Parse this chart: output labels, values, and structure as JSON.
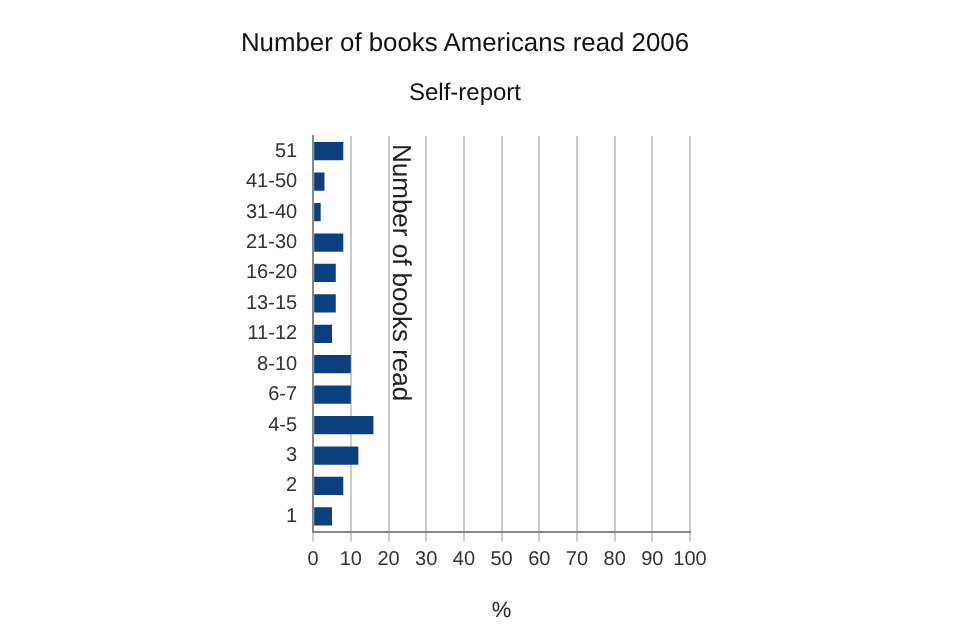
{
  "chart_data": {
    "type": "bar",
    "orientation": "horizontal",
    "title": "Number of books Americans read 2006",
    "subtitle": "Self-report",
    "xlabel": "%",
    "ylabel": "Number of books read",
    "categories": [
      "51",
      "41-50",
      "31-40",
      "21-30",
      "16-20",
      "13-15",
      "11-12",
      "8-10",
      "6-7",
      "4-5",
      "3",
      "2",
      "1"
    ],
    "values": [
      8,
      3,
      2,
      8,
      6,
      6,
      5,
      10,
      10,
      16,
      12,
      8,
      5
    ],
    "color": "#0b4080",
    "xlim": [
      0,
      100
    ],
    "xticks": [
      0,
      10,
      20,
      30,
      40,
      50,
      60,
      70,
      80,
      90,
      100
    ],
    "grid": "x",
    "legend": false
  }
}
